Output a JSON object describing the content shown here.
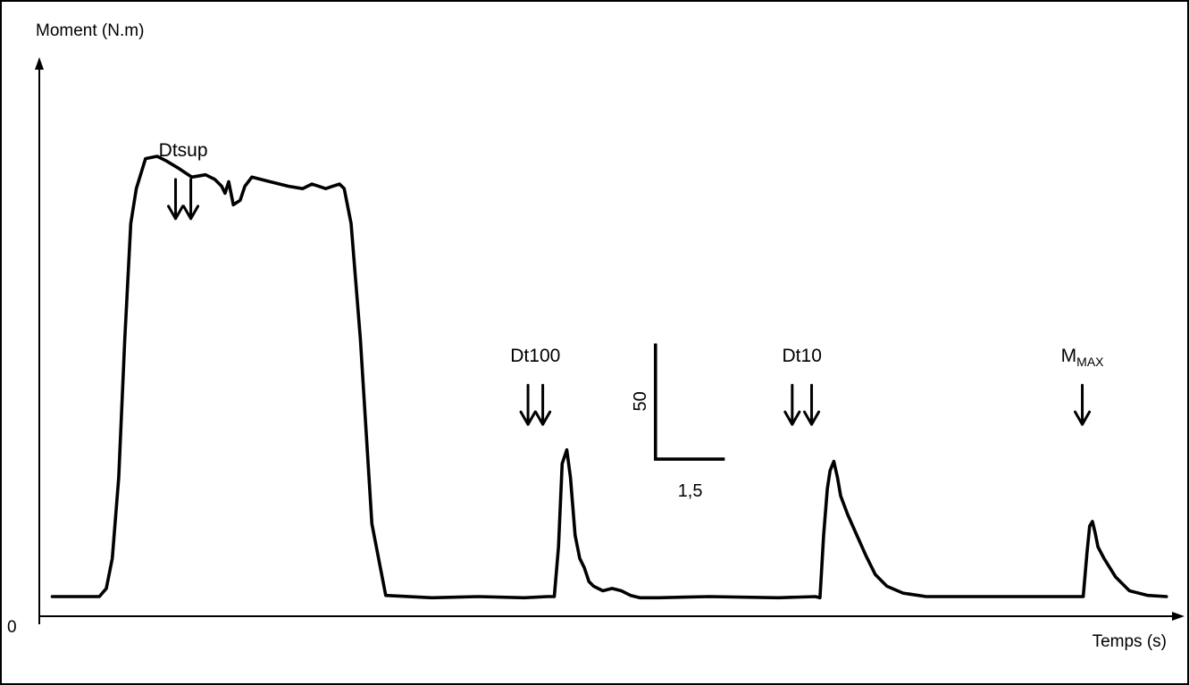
{
  "chart_data": {
    "type": "line",
    "ylabel": "Moment (N.m)",
    "xlabel": "Temps (s)",
    "origin_label": "0",
    "xlim": [
      0,
      24.6
    ],
    "ylim": [
      0,
      199
    ],
    "scale_bar": {
      "y_value": "50",
      "x_value": "1,5",
      "y_units": 50,
      "x_units": 1.5,
      "x_start": 13.34,
      "y_start": 68
    },
    "series": [
      {
        "color": "#000000",
        "x": [
          0.28,
          1.3,
          1.45,
          1.58,
          1.72,
          1.85,
          1.98,
          2.1,
          2.3,
          2.55,
          2.75,
          3.0,
          3.3,
          3.6,
          3.8,
          3.95,
          4.02,
          4.1,
          4.2,
          4.35,
          4.45,
          4.6,
          5.0,
          5.4,
          5.7,
          5.9,
          6.05,
          6.2,
          6.35,
          6.5,
          6.6,
          6.75,
          6.95,
          7.2,
          7.5,
          8.5,
          9.5,
          10.5,
          11.0,
          11.15,
          11.24,
          11.32,
          11.42,
          11.5,
          11.6,
          11.7,
          11.8,
          11.9,
          12.0,
          12.2,
          12.4,
          12.6,
          12.8,
          13.0,
          13.4,
          14.5,
          16.0,
          16.8,
          16.9,
          16.98,
          17.06,
          17.12,
          17.2,
          17.28,
          17.35,
          17.5,
          17.7,
          17.9,
          18.1,
          18.35,
          18.7,
          19.2,
          20.0,
          21.0,
          22.0,
          22.6,
          22.68,
          22.74,
          22.8,
          22.86,
          22.92,
          23.05,
          23.3,
          23.6,
          24.0,
          24.4
        ],
        "y": [
          8.5,
          8.5,
          12,
          25,
          60,
          120,
          170,
          185,
          198,
          199,
          197,
          194,
          190,
          191,
          189,
          186,
          183,
          188,
          178,
          180,
          186,
          190,
          188,
          186,
          185,
          187,
          186,
          185,
          186,
          187,
          185,
          170,
          120,
          40,
          9,
          8,
          8.5,
          8,
          8.5,
          8.5,
          30,
          66,
          72,
          60,
          35,
          25,
          21,
          15,
          13,
          11,
          12,
          11,
          9,
          8,
          8,
          8.5,
          8,
          8.5,
          8,
          35,
          55,
          63,
          67,
          60,
          52,
          44,
          35,
          26,
          18,
          13,
          10,
          8.5,
          8.5,
          8.5,
          8.5,
          8.5,
          27,
          39,
          41,
          36,
          30,
          25,
          17,
          11,
          9,
          8.5
        ]
      }
    ],
    "annotations": [
      {
        "label": "Dtsup",
        "x": [
          2.95,
          3.28
        ],
        "y": 172
      },
      {
        "label": "Dt100",
        "x": [
          10.58,
          10.9
        ],
        "y": 83
      },
      {
        "label": "Dt10",
        "x": [
          16.3,
          16.72
        ],
        "y": 83
      },
      {
        "label": "M",
        "sub": "MAX",
        "x": [
          22.58
        ],
        "y": 83
      }
    ]
  }
}
